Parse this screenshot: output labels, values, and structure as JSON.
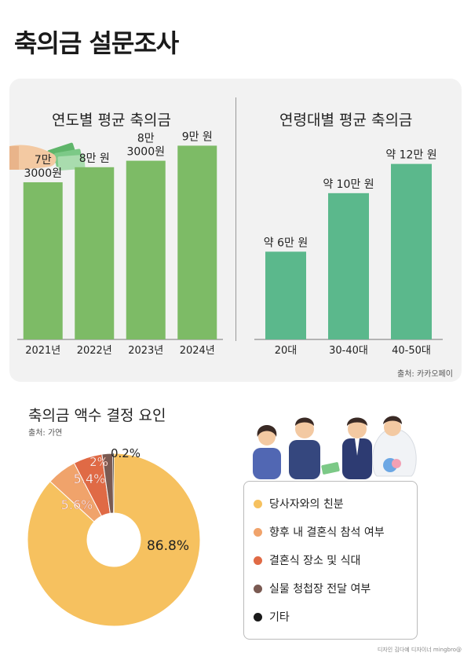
{
  "title": "축의금 설문조사",
  "chart_data": [
    {
      "type": "bar",
      "title": "연도별 평균 축의금",
      "categories": [
        "2021년",
        "2022년",
        "2023년",
        "2024년"
      ],
      "values": [
        73000,
        80000,
        83000,
        90000
      ],
      "data_labels": [
        "7만\n3000원",
        "8만 원",
        "8만\n3000원",
        "9만 원"
      ],
      "ylim": [
        0,
        100000
      ],
      "color": "#7dbb66",
      "grid": false
    },
    {
      "type": "bar",
      "title": "연령대별 평균 축의금",
      "categories": [
        "20대",
        "30-40대",
        "40-50대"
      ],
      "values": [
        60000,
        100000,
        120000
      ],
      "data_labels": [
        "약 6만 원",
        "약 10만 원",
        "약 12만 원"
      ],
      "ylim": [
        0,
        130000
      ],
      "color": "#5bb88c",
      "source": "출처: 카카오페이",
      "grid": false
    },
    {
      "type": "pie",
      "title": "축의금 액수 결정 요인",
      "source": "출처: 가연",
      "donut": true,
      "slices": [
        {
          "label": "당사자와의 친분",
          "value": 86.8,
          "value_label": "86.8%",
          "color": "#f6c15f"
        },
        {
          "label": "향후 내 결혼식 참석 여부",
          "value": 5.6,
          "value_label": "5.6%",
          "color": "#f0a36b"
        },
        {
          "label": "결혼식 장소 및 식대",
          "value": 5.4,
          "value_label": "5.4%",
          "color": "#e06a45"
        },
        {
          "label": "실물 청첩장 전달 여부",
          "value": 2,
          "value_label": "2%",
          "color": "#7a5a52"
        },
        {
          "label": "기타",
          "value": 0.2,
          "value_label": "0.2%",
          "color": "#1a1a1a"
        }
      ]
    }
  ],
  "illustration": {
    "name": "wedding-guests-illustration",
    "hand_icon": "hand-with-money-icon"
  },
  "credit": "디자인 김다예 디자이너 mingbro@"
}
